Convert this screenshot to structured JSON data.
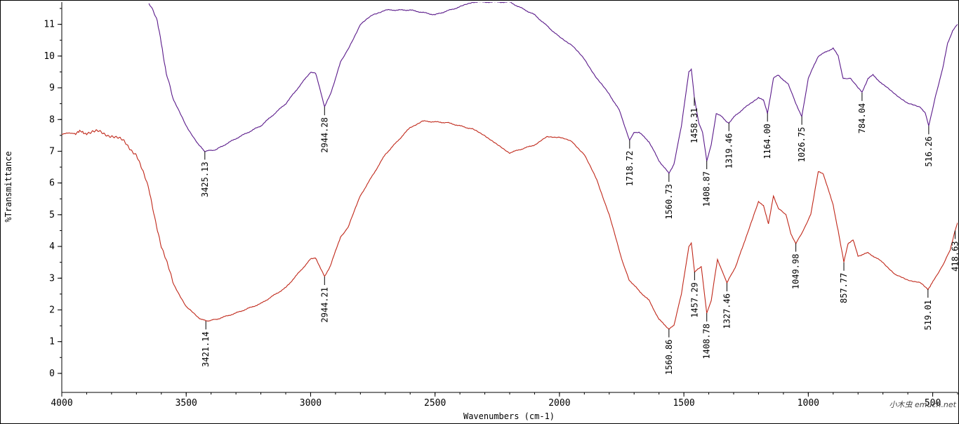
{
  "chart_data": {
    "type": "line",
    "title": "",
    "xlabel": "Wavenumbers (cm-1)",
    "ylabel": "%Transmittance",
    "xlim": [
      4000,
      400
    ],
    "ylim": [
      -0.6,
      11.7
    ],
    "x_ticks": [
      4000,
      3500,
      3000,
      2500,
      2000,
      1500,
      1000,
      500
    ],
    "y_ticks": [
      0,
      1,
      2,
      3,
      4,
      5,
      6,
      7,
      8,
      9,
      10,
      11
    ],
    "grid": false,
    "legend": "none",
    "series": [
      {
        "color": "#5a1a8a",
        "points": [
          [
            3650,
            11.7
          ],
          [
            3620,
            11.2
          ],
          [
            3600,
            10.4
          ],
          [
            3580,
            9.5
          ],
          [
            3550,
            8.6
          ],
          [
            3500,
            7.8
          ],
          [
            3450,
            7.2
          ],
          [
            3425,
            7.0
          ],
          [
            3380,
            7.05
          ],
          [
            3300,
            7.4
          ],
          [
            3200,
            7.8
          ],
          [
            3100,
            8.5
          ],
          [
            3000,
            9.5
          ],
          [
            2980,
            9.45
          ],
          [
            2960,
            8.9
          ],
          [
            2944,
            8.4
          ],
          [
            2920,
            8.8
          ],
          [
            2880,
            9.8
          ],
          [
            2850,
            10.2
          ],
          [
            2800,
            11.0
          ],
          [
            2750,
            11.3
          ],
          [
            2700,
            11.45
          ],
          [
            2600,
            11.45
          ],
          [
            2500,
            11.3
          ],
          [
            2400,
            11.55
          ],
          [
            2350,
            11.7
          ],
          [
            2200,
            11.7
          ],
          [
            2100,
            11.3
          ],
          [
            2000,
            10.6
          ],
          [
            1950,
            10.35
          ],
          [
            1900,
            9.9
          ],
          [
            1850,
            9.3
          ],
          [
            1800,
            8.8
          ],
          [
            1760,
            8.3
          ],
          [
            1730,
            7.6
          ],
          [
            1718,
            7.35
          ],
          [
            1700,
            7.6
          ],
          [
            1680,
            7.6
          ],
          [
            1640,
            7.3
          ],
          [
            1600,
            6.7
          ],
          [
            1560,
            6.3
          ],
          [
            1540,
            6.6
          ],
          [
            1510,
            7.8
          ],
          [
            1480,
            9.5
          ],
          [
            1470,
            9.6
          ],
          [
            1458,
            8.7
          ],
          [
            1440,
            7.9
          ],
          [
            1425,
            7.6
          ],
          [
            1408,
            6.7
          ],
          [
            1390,
            7.2
          ],
          [
            1370,
            8.2
          ],
          [
            1350,
            8.1
          ],
          [
            1330,
            7.95
          ],
          [
            1319,
            7.9
          ],
          [
            1290,
            8.15
          ],
          [
            1250,
            8.4
          ],
          [
            1200,
            8.7
          ],
          [
            1180,
            8.6
          ],
          [
            1164,
            8.2
          ],
          [
            1140,
            9.3
          ],
          [
            1120,
            9.4
          ],
          [
            1080,
            9.1
          ],
          [
            1050,
            8.5
          ],
          [
            1026,
            8.1
          ],
          [
            1000,
            9.3
          ],
          [
            960,
            10.0
          ],
          [
            900,
            10.25
          ],
          [
            880,
            10.0
          ],
          [
            860,
            9.3
          ],
          [
            830,
            9.3
          ],
          [
            800,
            9.0
          ],
          [
            784,
            8.85
          ],
          [
            760,
            9.3
          ],
          [
            740,
            9.4
          ],
          [
            700,
            9.1
          ],
          [
            650,
            8.8
          ],
          [
            600,
            8.5
          ],
          [
            550,
            8.4
          ],
          [
            530,
            8.2
          ],
          [
            516,
            7.8
          ],
          [
            490,
            8.7
          ],
          [
            460,
            9.6
          ],
          [
            440,
            10.4
          ],
          [
            420,
            10.8
          ],
          [
            400,
            11.0
          ]
        ]
      },
      {
        "color": "#c0281a",
        "points": [
          [
            4000,
            7.55
          ],
          [
            3900,
            7.6
          ],
          [
            3850,
            7.6
          ],
          [
            3800,
            7.5
          ],
          [
            3750,
            7.3
          ],
          [
            3700,
            6.9
          ],
          [
            3650,
            5.8
          ],
          [
            3600,
            4.0
          ],
          [
            3550,
            2.8
          ],
          [
            3500,
            2.1
          ],
          [
            3450,
            1.75
          ],
          [
            3421,
            1.65
          ],
          [
            3380,
            1.7
          ],
          [
            3300,
            1.9
          ],
          [
            3200,
            2.2
          ],
          [
            3100,
            2.7
          ],
          [
            3000,
            3.6
          ],
          [
            2980,
            3.65
          ],
          [
            2960,
            3.3
          ],
          [
            2944,
            3.05
          ],
          [
            2920,
            3.4
          ],
          [
            2880,
            4.3
          ],
          [
            2850,
            4.6
          ],
          [
            2800,
            5.6
          ],
          [
            2700,
            6.9
          ],
          [
            2600,
            7.75
          ],
          [
            2550,
            7.95
          ],
          [
            2450,
            7.9
          ],
          [
            2350,
            7.7
          ],
          [
            2300,
            7.5
          ],
          [
            2250,
            7.2
          ],
          [
            2200,
            6.95
          ],
          [
            2100,
            7.2
          ],
          [
            2050,
            7.45
          ],
          [
            2000,
            7.45
          ],
          [
            1950,
            7.3
          ],
          [
            1900,
            6.9
          ],
          [
            1850,
            6.1
          ],
          [
            1800,
            5.0
          ],
          [
            1750,
            3.6
          ],
          [
            1720,
            2.95
          ],
          [
            1680,
            2.6
          ],
          [
            1640,
            2.3
          ],
          [
            1600,
            1.7
          ],
          [
            1560,
            1.4
          ],
          [
            1540,
            1.5
          ],
          [
            1510,
            2.5
          ],
          [
            1480,
            4.0
          ],
          [
            1470,
            4.1
          ],
          [
            1457,
            3.2
          ],
          [
            1440,
            3.3
          ],
          [
            1430,
            3.35
          ],
          [
            1408,
            1.9
          ],
          [
            1390,
            2.3
          ],
          [
            1365,
            3.6
          ],
          [
            1345,
            3.2
          ],
          [
            1327,
            2.85
          ],
          [
            1290,
            3.4
          ],
          [
            1250,
            4.3
          ],
          [
            1200,
            5.4
          ],
          [
            1180,
            5.3
          ],
          [
            1160,
            4.7
          ],
          [
            1140,
            5.6
          ],
          [
            1120,
            5.2
          ],
          [
            1090,
            5.0
          ],
          [
            1070,
            4.4
          ],
          [
            1050,
            4.1
          ],
          [
            1020,
            4.5
          ],
          [
            990,
            5.0
          ],
          [
            960,
            6.35
          ],
          [
            940,
            6.3
          ],
          [
            900,
            5.3
          ],
          [
            880,
            4.5
          ],
          [
            857,
            3.5
          ],
          [
            840,
            4.1
          ],
          [
            820,
            4.2
          ],
          [
            800,
            3.7
          ],
          [
            760,
            3.8
          ],
          [
            700,
            3.5
          ],
          [
            650,
            3.1
          ],
          [
            600,
            2.95
          ],
          [
            550,
            2.85
          ],
          [
            519,
            2.65
          ],
          [
            490,
            3.0
          ],
          [
            460,
            3.4
          ],
          [
            430,
            3.9
          ],
          [
            410,
            4.5
          ],
          [
            400,
            4.75
          ]
        ]
      }
    ],
    "annotations": [
      {
        "label": "3425.13",
        "x": 3425,
        "y": 7.0,
        "series": 0
      },
      {
        "label": "2944.28",
        "x": 2944,
        "y": 8.4,
        "series": 0
      },
      {
        "label": "1718.72",
        "x": 1718,
        "y": 7.35,
        "series": 0
      },
      {
        "label": "1560.73",
        "x": 1560,
        "y": 6.3,
        "series": 0
      },
      {
        "label": "1458.31",
        "x": 1458,
        "y": 8.7,
        "series": 0
      },
      {
        "label": "1408.87",
        "x": 1408,
        "y": 6.7,
        "series": 0
      },
      {
        "label": "1319.46",
        "x": 1319,
        "y": 7.9,
        "series": 0
      },
      {
        "label": "1164.00",
        "x": 1164,
        "y": 8.2,
        "series": 0
      },
      {
        "label": "1026.75",
        "x": 1026,
        "y": 8.1,
        "series": 0
      },
      {
        "label": "784.04",
        "x": 784,
        "y": 8.85,
        "series": 0
      },
      {
        "label": "516.26",
        "x": 516,
        "y": 7.8,
        "series": 0
      },
      {
        "label": "3421.14",
        "x": 3421,
        "y": 1.65,
        "series": 1
      },
      {
        "label": "2944.21",
        "x": 2944,
        "y": 3.05,
        "series": 1
      },
      {
        "label": "1560.86",
        "x": 1560,
        "y": 1.4,
        "series": 1
      },
      {
        "label": "1457.29",
        "x": 1457,
        "y": 3.2,
        "series": 1
      },
      {
        "label": "1408.78",
        "x": 1408,
        "y": 1.9,
        "series": 1
      },
      {
        "label": "1327.46",
        "x": 1327,
        "y": 2.85,
        "series": 1
      },
      {
        "label": "1049.98",
        "x": 1050,
        "y": 4.1,
        "series": 1
      },
      {
        "label": "857.77",
        "x": 857,
        "y": 3.5,
        "series": 1
      },
      {
        "label": "519.01",
        "x": 519,
        "y": 2.65,
        "series": 1
      },
      {
        "label": "418.63",
        "x": 410,
        "y": 4.5,
        "series": 1
      }
    ]
  },
  "watermark": "小木虫 emuch.net"
}
